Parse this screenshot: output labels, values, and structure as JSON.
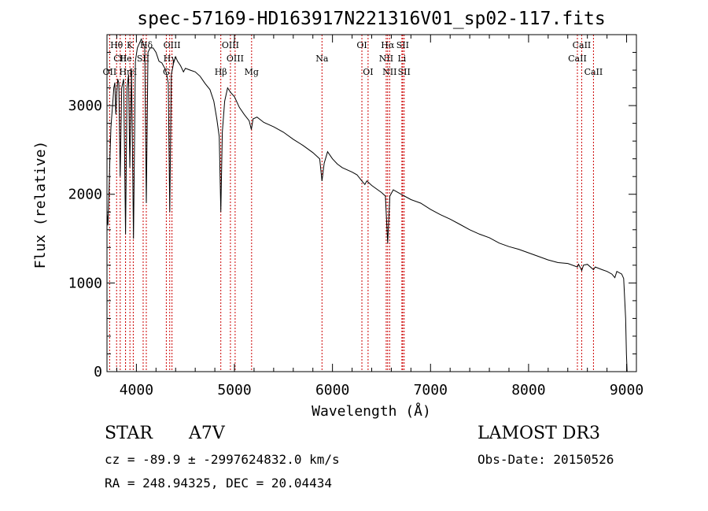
{
  "chart_data": {
    "type": "line",
    "title": "spec-57169-HD163917N221316V01_sp02-117.fits",
    "xlabel": "Wavelength (Å)",
    "ylabel": "Flux (relative)",
    "xlim": [
      3700,
      9100
    ],
    "ylim": [
      0,
      3800
    ],
    "xticks": [
      4000,
      5000,
      6000,
      7000,
      8000,
      9000
    ],
    "yticks": [
      0,
      1000,
      2000,
      3000
    ],
    "series": [
      {
        "name": "flux",
        "points": [
          [
            3700,
            1800
          ],
          [
            3710,
            1650
          ],
          [
            3720,
            2000
          ],
          [
            3730,
            2400
          ],
          [
            3740,
            2750
          ],
          [
            3750,
            2900
          ],
          [
            3760,
            3050
          ],
          [
            3770,
            3200
          ],
          [
            3780,
            3260
          ],
          [
            3790,
            2900
          ],
          [
            3800,
            3150
          ],
          [
            3810,
            3300
          ],
          [
            3820,
            3250
          ],
          [
            3835,
            2200
          ],
          [
            3850,
            3200
          ],
          [
            3870,
            3300
          ],
          [
            3889,
            1550
          ],
          [
            3905,
            3200
          ],
          [
            3920,
            3350
          ],
          [
            3933,
            2300
          ],
          [
            3950,
            3400
          ],
          [
            3970,
            1500
          ],
          [
            3990,
            3500
          ],
          [
            4010,
            3650
          ],
          [
            4030,
            3700
          ],
          [
            4050,
            3750
          ],
          [
            4070,
            3700
          ],
          [
            4085,
            3650
          ],
          [
            4101,
            1900
          ],
          [
            4118,
            3600
          ],
          [
            4140,
            3650
          ],
          [
            4170,
            3650
          ],
          [
            4200,
            3600
          ],
          [
            4230,
            3500
          ],
          [
            4260,
            3480
          ],
          [
            4290,
            3420
          ],
          [
            4310,
            3350
          ],
          [
            4325,
            3250
          ],
          [
            4340,
            1800
          ],
          [
            4356,
            3350
          ],
          [
            4380,
            3480
          ],
          [
            4400,
            3550
          ],
          [
            4420,
            3500
          ],
          [
            4450,
            3450
          ],
          [
            4480,
            3380
          ],
          [
            4500,
            3420
          ],
          [
            4550,
            3400
          ],
          [
            4600,
            3380
          ],
          [
            4650,
            3330
          ],
          [
            4700,
            3250
          ],
          [
            4750,
            3180
          ],
          [
            4790,
            3050
          ],
          [
            4820,
            2850
          ],
          [
            4845,
            2650
          ],
          [
            4861,
            1800
          ],
          [
            4876,
            2700
          ],
          [
            4900,
            3050
          ],
          [
            4930,
            3200
          ],
          [
            4960,
            3150
          ],
          [
            5000,
            3100
          ],
          [
            5050,
            2980
          ],
          [
            5100,
            2900
          ],
          [
            5150,
            2830
          ],
          [
            5172,
            2730
          ],
          [
            5190,
            2850
          ],
          [
            5230,
            2870
          ],
          [
            5300,
            2810
          ],
          [
            5400,
            2760
          ],
          [
            5500,
            2700
          ],
          [
            5600,
            2620
          ],
          [
            5700,
            2550
          ],
          [
            5800,
            2470
          ],
          [
            5870,
            2400
          ],
          [
            5893,
            2150
          ],
          [
            5915,
            2350
          ],
          [
            5950,
            2480
          ],
          [
            6000,
            2400
          ],
          [
            6050,
            2340
          ],
          [
            6100,
            2300
          ],
          [
            6200,
            2250
          ],
          [
            6250,
            2220
          ],
          [
            6300,
            2150
          ],
          [
            6330,
            2110
          ],
          [
            6350,
            2150
          ],
          [
            6400,
            2100
          ],
          [
            6450,
            2060
          ],
          [
            6500,
            2020
          ],
          [
            6540,
            1980
          ],
          [
            6563,
            1450
          ],
          [
            6585,
            1980
          ],
          [
            6620,
            2050
          ],
          [
            6700,
            2000
          ],
          [
            6800,
            1940
          ],
          [
            6900,
            1900
          ],
          [
            7000,
            1830
          ],
          [
            7100,
            1770
          ],
          [
            7200,
            1720
          ],
          [
            7300,
            1660
          ],
          [
            7400,
            1600
          ],
          [
            7500,
            1550
          ],
          [
            7600,
            1510
          ],
          [
            7700,
            1450
          ],
          [
            7800,
            1410
          ],
          [
            7900,
            1380
          ],
          [
            8000,
            1340
          ],
          [
            8100,
            1300
          ],
          [
            8200,
            1260
          ],
          [
            8300,
            1230
          ],
          [
            8400,
            1220
          ],
          [
            8498,
            1180
          ],
          [
            8510,
            1210
          ],
          [
            8542,
            1140
          ],
          [
            8560,
            1200
          ],
          [
            8600,
            1210
          ],
          [
            8662,
            1150
          ],
          [
            8680,
            1180
          ],
          [
            8750,
            1150
          ],
          [
            8800,
            1130
          ],
          [
            8850,
            1100
          ],
          [
            8880,
            1060
          ],
          [
            8900,
            1130
          ],
          [
            8950,
            1100
          ],
          [
            8970,
            1050
          ],
          [
            8990,
            600
          ],
          [
            8998,
            200
          ],
          [
            9005,
            0
          ]
        ]
      }
    ],
    "lines": [
      {
        "label": "Hθ",
        "x": 3798,
        "row": 0
      },
      {
        "label": "CII",
        "x": 3835,
        "row": 1
      },
      {
        "label": "OII",
        "x": 3727,
        "row": 2
      },
      {
        "label": "Hη",
        "x": 3889,
        "row": 2
      },
      {
        "label": "K",
        "x": 3934,
        "row": 0
      },
      {
        "label": "He",
        "x": 3889,
        "row": 1
      },
      {
        "label": "SII",
        "x": 4069,
        "row": 1
      },
      {
        "label": "Hδ",
        "x": 4101,
        "row": 0
      },
      {
        "label": "H",
        "x": 3968,
        "row": 2
      },
      {
        "label": "OIII",
        "x": 4363,
        "row": 0
      },
      {
        "label": "Hγ",
        "x": 4340,
        "row": 1
      },
      {
        "label": "G",
        "x": 4305,
        "row": 2
      },
      {
        "label": "Hβ",
        "x": 4861,
        "row": 2
      },
      {
        "label": "OIII",
        "x": 4959,
        "row": 0
      },
      {
        "label": "OIII",
        "x": 5007,
        "row": 1
      },
      {
        "label": "Mg",
        "x": 5175,
        "row": 2
      },
      {
        "label": "Na",
        "x": 5893,
        "row": 1
      },
      {
        "label": "OI",
        "x": 6300,
        "row": 0
      },
      {
        "label": "OI",
        "x": 6363,
        "row": 2
      },
      {
        "label": "Hα",
        "x": 6563,
        "row": 0
      },
      {
        "label": "NII",
        "x": 6548,
        "row": 1
      },
      {
        "label": "NII",
        "x": 6583,
        "row": 2
      },
      {
        "label": "SII",
        "x": 6716,
        "row": 0
      },
      {
        "label": "Li",
        "x": 6708,
        "row": 1
      },
      {
        "label": "SII",
        "x": 6731,
        "row": 2
      },
      {
        "label": "CaII",
        "x": 8542,
        "row": 0
      },
      {
        "label": "CaII",
        "x": 8498,
        "row": 1
      },
      {
        "label": "CaII",
        "x": 8662,
        "row": 2
      }
    ]
  },
  "info": {
    "object_type": "STAR",
    "subclass": "A7V",
    "survey": "LAMOST DR3",
    "cz": "cz = -89.9 ± -2997624832.0 km/s",
    "obs_date": "Obs-Date: 20150526",
    "coords": "RA = 248.94325, DEC =  20.04434"
  },
  "colors": {
    "line_marker": "#cc0000",
    "spectrum": "#000000",
    "axis": "#000000"
  }
}
